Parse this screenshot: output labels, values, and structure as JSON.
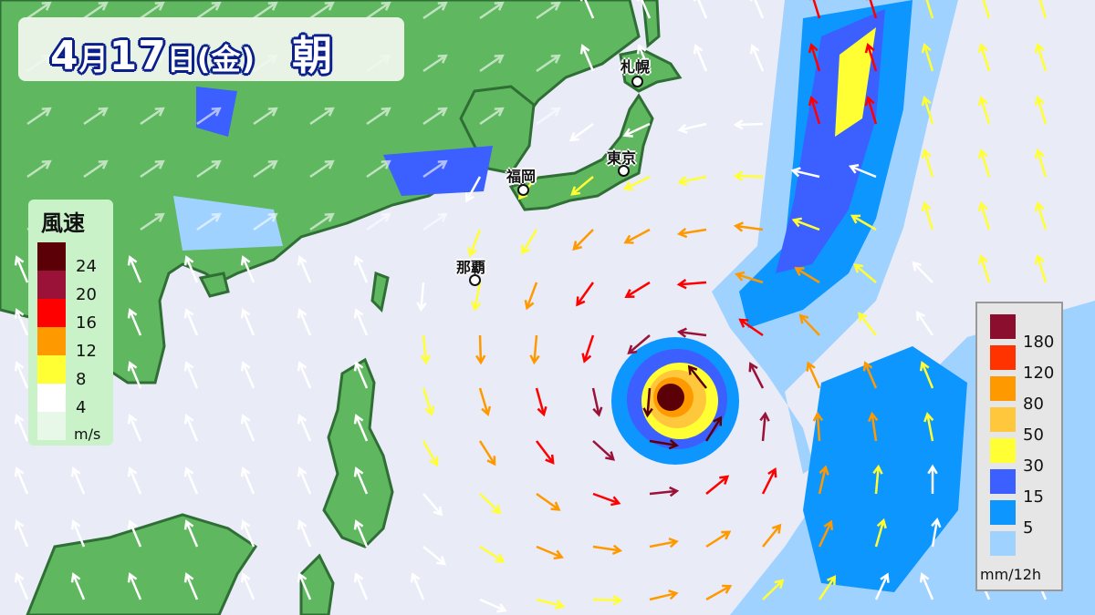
{
  "header": {
    "month": "4",
    "month_suffix": "月",
    "day": "17",
    "day_suffix": "日",
    "weekday": "(金)",
    "period": "朝"
  },
  "cities": [
    {
      "name": "札幌"
    },
    {
      "name": "東京"
    },
    {
      "name": "福岡"
    },
    {
      "name": "那覇"
    }
  ],
  "wind_legend": {
    "title": "風速",
    "unit": "m/s",
    "levels": [
      {
        "label": "24",
        "color": "#5c0008"
      },
      {
        "label": "20",
        "color": "#9a1238"
      },
      {
        "label": "16",
        "color": "#ff0000"
      },
      {
        "label": "12",
        "color": "#ff9900"
      },
      {
        "label": "8",
        "color": "#ffff33"
      },
      {
        "label": "4",
        "color": "#ffffff"
      },
      {
        "label": "",
        "color": "#e8f8e8"
      }
    ]
  },
  "rain_legend": {
    "unit": "mm/12h",
    "levels": [
      {
        "label": "180",
        "color": "#8c0e2e"
      },
      {
        "label": "120",
        "color": "#ff3300"
      },
      {
        "label": "80",
        "color": "#ff9900"
      },
      {
        "label": "50",
        "color": "#ffc83c"
      },
      {
        "label": "30",
        "color": "#ffff33"
      },
      {
        "label": "15",
        "color": "#3c5fff"
      },
      {
        "label": "5",
        "color": "#0e96ff"
      },
      {
        "label": "",
        "color": "#a0d2ff"
      }
    ]
  },
  "colors": {
    "land": "#5fb85f",
    "sea": "#e9ebf7",
    "coast": "#2f6e35"
  }
}
